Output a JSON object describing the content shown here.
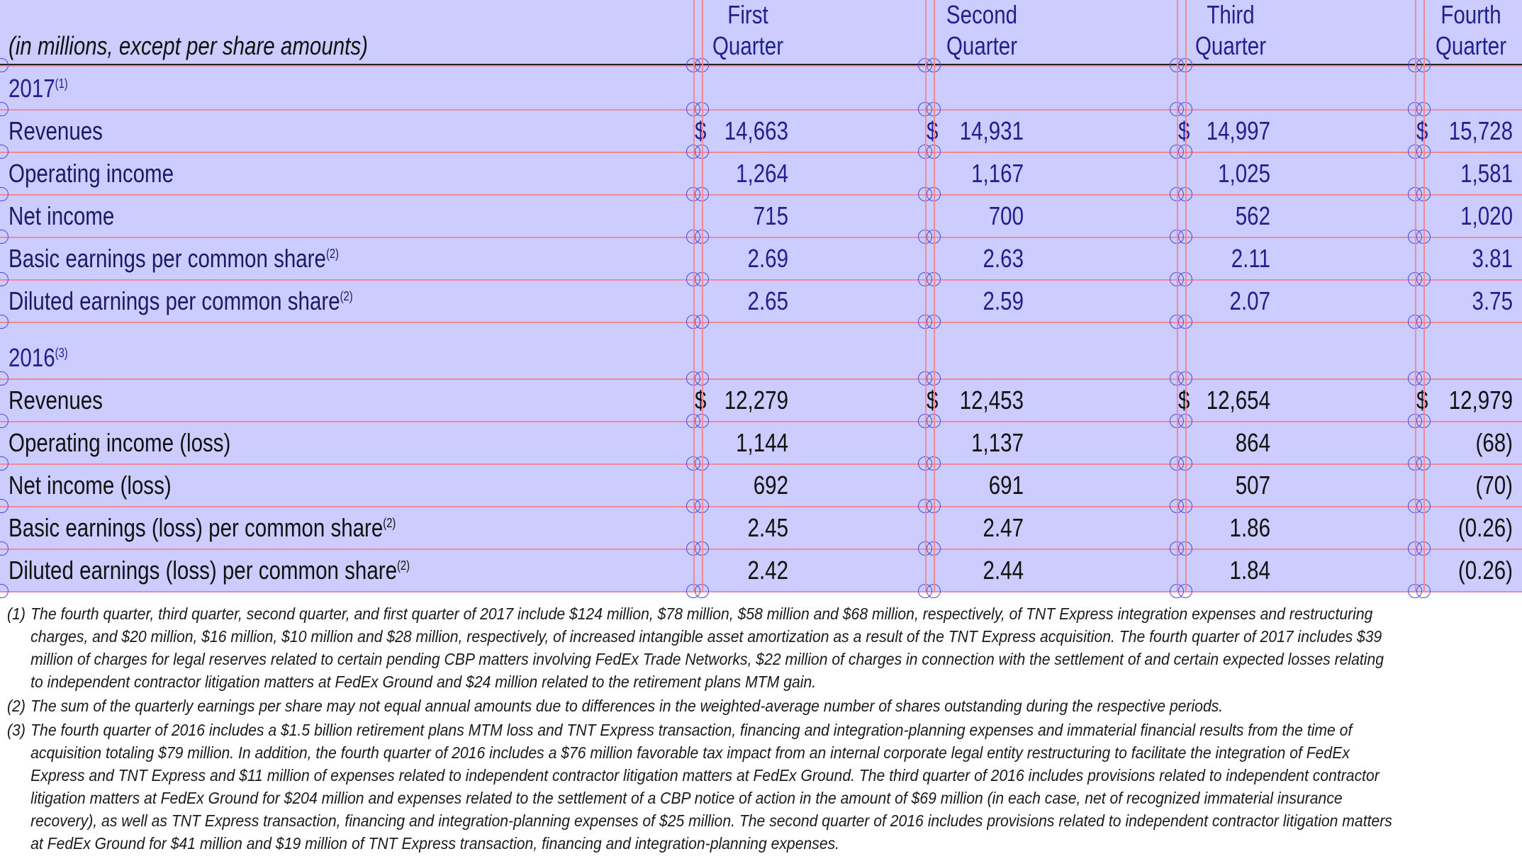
{
  "header": {
    "caption": "(in millions, except per share amounts)",
    "columns": [
      {
        "line1": "First",
        "line2": "Quarter"
      },
      {
        "line1": "Second",
        "line2": "Quarter"
      },
      {
        "line1": "Third",
        "line2": "Quarter"
      },
      {
        "line1": "Fourth",
        "line2": "Quarter"
      }
    ]
  },
  "sections": [
    {
      "year": "2017",
      "footnote_ref": "(1)",
      "rows": [
        {
          "label": "Revenues",
          "sup": "",
          "currency": "$",
          "values": [
            "14,663",
            "14,931",
            "14,997",
            "15,728"
          ]
        },
        {
          "label": "Operating income",
          "sup": "",
          "currency": "",
          "values": [
            "1,264",
            "1,167",
            "1,025",
            "1,581"
          ]
        },
        {
          "label": "Net income",
          "sup": "",
          "currency": "",
          "values": [
            "715",
            "700",
            "562",
            "1,020"
          ]
        },
        {
          "label": "Basic earnings per common share",
          "sup": "(2)",
          "currency": "",
          "values": [
            "2.69",
            "2.63",
            "2.11",
            "3.81"
          ]
        },
        {
          "label": "Diluted earnings per common share",
          "sup": "(2)",
          "currency": "",
          "values": [
            "2.65",
            "2.59",
            "2.07",
            "3.75"
          ]
        }
      ]
    },
    {
      "year": "2016",
      "footnote_ref": "(3)",
      "rows": [
        {
          "label": "Revenues",
          "sup": "",
          "currency": "$",
          "values": [
            "12,279",
            "12,453",
            "12,654",
            "12,979"
          ]
        },
        {
          "label": "Operating income (loss)",
          "sup": "",
          "currency": "",
          "values": [
            "1,144",
            "1,137",
            "864",
            "(68)"
          ]
        },
        {
          "label": "Net income (loss)",
          "sup": "",
          "currency": "",
          "values": [
            "692",
            "691",
            "507",
            "(70)"
          ]
        },
        {
          "label": "Basic earnings (loss) per common share",
          "sup": "(2)",
          "currency": "",
          "values": [
            "2.45",
            "2.47",
            "1.86",
            "(0.26)"
          ]
        },
        {
          "label": "Diluted earnings (loss) per common share",
          "sup": "(2)",
          "currency": "",
          "values": [
            "2.42",
            "2.44",
            "1.84",
            "(0.26)"
          ]
        }
      ]
    }
  ],
  "footnotes": [
    {
      "num": "(1)",
      "text": "The fourth quarter, third quarter, second quarter, and first quarter of 2017 include $124 million, $78 million, $58 million and $68 million, respectively, of TNT Express integration expenses and restructuring charges, and $20 million, $16 million, $10 million and $28 million, respectively, of increased intangible asset amortization as a result of the TNT Express acquisition. The fourth quarter of 2017 includes $39 million of charges for legal reserves related to certain pending CBP matters involving FedEx Trade Networks, $22 million of charges in connection with the settlement of and certain expected losses relating to independent contractor litigation matters at FedEx Ground and $24 million related to the retirement plans MTM gain."
    },
    {
      "num": "(2)",
      "text": "The sum of the quarterly earnings per share may not equal annual amounts due to differences in the weighted-average number of shares outstanding during the respective periods."
    },
    {
      "num": "(3)",
      "text": "The fourth quarter of 2016 includes a $1.5 billion retirement plans MTM loss and TNT Express transaction, financing and integration-planning expenses and immaterial financial results from the time of acquisition totaling $79 million. In addition, the fourth quarter of 2016 includes a $76 million favorable tax impact from an internal corporate legal entity restructuring to facilitate the integration of FedEx Express and TNT Express and $11 million of expenses related to independent contractor litigation matters at FedEx Ground. The third quarter of 2016 includes provisions related to independent contractor litigation matters at FedEx Ground for $204 million and expenses related to the settlement of a CBP notice of action in the amount of $69 million (in each case, net of recognized immaterial insurance recovery), as well as TNT Express transaction, financing and integration-planning expenses of $25 million. The second quarter of 2016 includes provisions related to independent contractor litigation matters at FedEx Ground for $41 million and $19 million of TNT Express transaction, financing and integration-planning expenses."
    }
  ]
}
